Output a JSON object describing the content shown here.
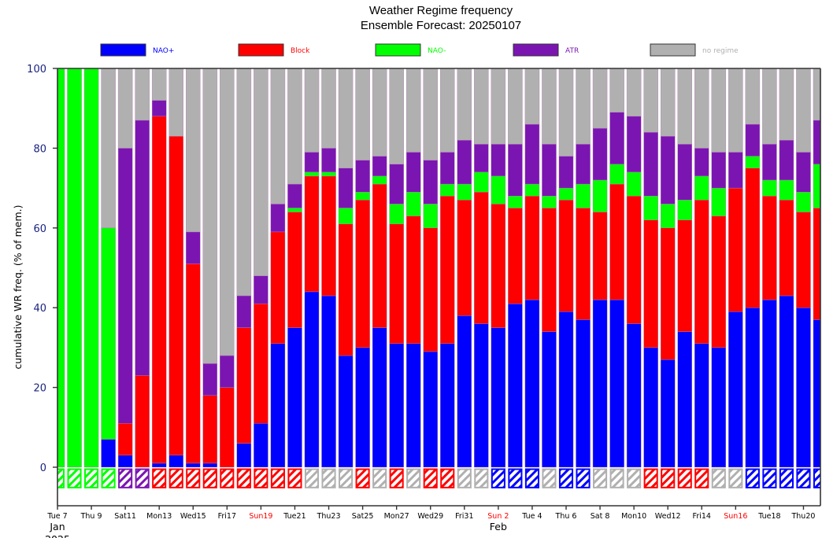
{
  "colors": {
    "NAO+": "#0000ff",
    "Block": "#ff0000",
    "NAO-": "#00ff00",
    "ATR": "#7b15b2",
    "no regime": "#b0b0b0",
    "axis_text": "#1a237e",
    "sunday_text": "#ff0000"
  },
  "chart_data": {
    "type": "bar",
    "stacked": true,
    "title": "Weather Regime frequency",
    "subtitle": "Ensemble Forecast: 20250107",
    "xlabel": "",
    "ylabel": "cumulative WR freq. (% of mem.)",
    "ylim": [
      -10,
      100
    ],
    "yticks": [
      0,
      20,
      40,
      60,
      80,
      100
    ],
    "grid": false,
    "legend_position": "top",
    "legend": [
      {
        "name": "NAO+",
        "color_key": "NAO+"
      },
      {
        "name": "Block",
        "color_key": "Block"
      },
      {
        "name": "NAO-",
        "color_key": "NAO-"
      },
      {
        "name": "ATR",
        "color_key": "ATR"
      },
      {
        "name": "no regime",
        "color_key": "no regime"
      }
    ],
    "xticks": [
      {
        "day": 0,
        "label": "Tue 7",
        "sunday": false
      },
      {
        "day": 2,
        "label": "Thu 9",
        "sunday": false
      },
      {
        "day": 4,
        "label": "Sat11",
        "sunday": false
      },
      {
        "day": 6,
        "label": "Mon13",
        "sunday": false
      },
      {
        "day": 8,
        "label": "Wed15",
        "sunday": false
      },
      {
        "day": 10,
        "label": "Fri17",
        "sunday": false
      },
      {
        "day": 12,
        "label": "Sun19",
        "sunday": true
      },
      {
        "day": 14,
        "label": "Tue21",
        "sunday": false
      },
      {
        "day": 16,
        "label": "Thu23",
        "sunday": false
      },
      {
        "day": 18,
        "label": "Sat25",
        "sunday": false
      },
      {
        "day": 20,
        "label": "Mon27",
        "sunday": false
      },
      {
        "day": 22,
        "label": "Wed29",
        "sunday": false
      },
      {
        "day": 24,
        "label": "Fri31",
        "sunday": false
      },
      {
        "day": 26,
        "label": "Sun 2",
        "sunday": true
      },
      {
        "day": 28,
        "label": "Tue 4",
        "sunday": false
      },
      {
        "day": 30,
        "label": "Thu 6",
        "sunday": false
      },
      {
        "day": 32,
        "label": "Sat 8",
        "sunday": false
      },
      {
        "day": 34,
        "label": "Mon10",
        "sunday": false
      },
      {
        "day": 36,
        "label": "Wed12",
        "sunday": false
      },
      {
        "day": 38,
        "label": "Fri14",
        "sunday": false
      },
      {
        "day": 40,
        "label": "Sun16",
        "sunday": true
      },
      {
        "day": 42,
        "label": "Tue18",
        "sunday": false
      },
      {
        "day": 44,
        "label": "Thu20",
        "sunday": false
      }
    ],
    "month_labels": [
      {
        "day": 0,
        "label": "Jan"
      },
      {
        "day": 26,
        "label": "Feb"
      }
    ],
    "year_label": {
      "day": 0,
      "label": "2025"
    },
    "xlim": [
      0,
      45
    ],
    "dates": [
      "Jan 7",
      "Jan 8",
      "Jan 9",
      "Jan 10",
      "Jan 11",
      "Jan 12",
      "Jan 13",
      "Jan 14",
      "Jan 15",
      "Jan 16",
      "Jan 17",
      "Jan 18",
      "Jan 19",
      "Jan 20",
      "Jan 21",
      "Jan 22",
      "Jan 23",
      "Jan 24",
      "Jan 25",
      "Jan 26",
      "Jan 27",
      "Jan 28",
      "Jan 29",
      "Jan 30",
      "Jan 31",
      "Feb 1",
      "Feb 2",
      "Feb 3",
      "Feb 4",
      "Feb 5",
      "Feb 6",
      "Feb 7",
      "Feb 8",
      "Feb 9",
      "Feb 10",
      "Feb 11",
      "Feb 12",
      "Feb 13",
      "Feb 14",
      "Feb 15",
      "Feb 16",
      "Feb 17",
      "Feb 18",
      "Feb 19",
      "Feb 20",
      "Feb 21"
    ],
    "series": [
      {
        "name": "NAO+",
        "values": [
          0,
          0,
          0,
          7,
          3,
          0,
          1,
          3,
          1,
          1,
          0,
          6,
          11,
          31,
          35,
          44,
          43,
          28,
          30,
          35,
          31,
          31,
          29,
          31,
          38,
          36,
          35,
          41,
          42,
          34,
          39,
          37,
          42,
          42,
          36,
          30,
          27,
          34,
          31,
          30,
          39,
          40,
          42,
          43,
          40,
          37
        ]
      },
      {
        "name": "Block",
        "values": [
          0,
          0,
          0,
          0,
          8,
          23,
          87,
          80,
          50,
          17,
          20,
          29,
          30,
          28,
          29,
          29,
          30,
          33,
          37,
          36,
          30,
          32,
          31,
          37,
          29,
          33,
          31,
          24,
          26,
          31,
          28,
          28,
          22,
          29,
          32,
          32,
          33,
          28,
          36,
          33,
          31,
          35,
          26,
          24,
          24,
          28
        ]
      },
      {
        "name": "NAO-",
        "values": [
          100,
          100,
          100,
          53,
          0,
          0,
          0,
          0,
          0,
          0,
          0,
          0,
          0,
          0,
          1,
          1,
          1,
          4,
          2,
          2,
          5,
          6,
          6,
          3,
          4,
          5,
          7,
          3,
          3,
          3,
          3,
          6,
          8,
          5,
          6,
          6,
          6,
          5,
          6,
          7,
          0,
          3,
          4,
          5,
          5,
          11
        ]
      },
      {
        "name": "ATR",
        "values": [
          0,
          0,
          0,
          0,
          69,
          64,
          4,
          0,
          8,
          8,
          8,
          8,
          7,
          7,
          6,
          5,
          6,
          10,
          8,
          5,
          10,
          10,
          11,
          8,
          11,
          7,
          8,
          13,
          15,
          13,
          8,
          10,
          13,
          13,
          14,
          16,
          17,
          14,
          7,
          9,
          9,
          8,
          9,
          10,
          10,
          11
        ]
      },
      {
        "name": "no regime",
        "values": [
          0,
          0,
          0,
          40,
          20,
          13,
          8,
          17,
          41,
          74,
          72,
          57,
          52,
          34,
          29,
          21,
          20,
          25,
          23,
          22,
          24,
          21,
          23,
          21,
          18,
          19,
          19,
          19,
          14,
          19,
          22,
          19,
          15,
          11,
          12,
          16,
          17,
          19,
          20,
          21,
          21,
          14,
          19,
          18,
          21,
          13
        ]
      }
    ],
    "dominant_regime": [
      "NAO-",
      "NAO-",
      "NAO-",
      "NAO-",
      "ATR",
      "ATR",
      "Block",
      "Block",
      "Block",
      "Block",
      "Block",
      "Block",
      "Block",
      "Block",
      "Block",
      "no regime",
      "no regime",
      "no regime",
      "Block",
      "no regime",
      "Block",
      "no regime",
      "Block",
      "Block",
      "no regime",
      "no regime",
      "NAO+",
      "NAO+",
      "NAO+",
      "no regime",
      "NAO+",
      "NAO+",
      "no regime",
      "no regime",
      "no regime",
      "Block",
      "Block",
      "Block",
      "Block",
      "no regime",
      "no regime",
      "NAO+",
      "NAO+",
      "NAO+",
      "NAO+",
      "NAO+"
    ]
  }
}
